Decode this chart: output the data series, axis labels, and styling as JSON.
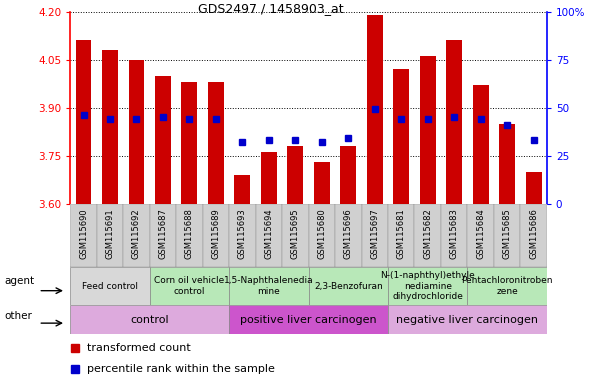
{
  "title": "GDS2497 / 1458903_at",
  "samples": [
    "GSM115690",
    "GSM115691",
    "GSM115692",
    "GSM115687",
    "GSM115688",
    "GSM115689",
    "GSM115693",
    "GSM115694",
    "GSM115695",
    "GSM115680",
    "GSM115696",
    "GSM115697",
    "GSM115681",
    "GSM115682",
    "GSM115683",
    "GSM115684",
    "GSM115685",
    "GSM115686"
  ],
  "bar_values": [
    4.11,
    4.08,
    4.05,
    4.0,
    3.98,
    3.98,
    3.69,
    3.76,
    3.78,
    3.73,
    3.78,
    4.19,
    4.02,
    4.06,
    4.11,
    3.97,
    3.85,
    3.7
  ],
  "percentile_values": [
    46,
    44,
    44,
    45,
    44,
    44,
    32,
    33,
    33,
    32,
    34,
    49,
    44,
    44,
    45,
    44,
    41,
    33
  ],
  "ymin": 3.6,
  "ymax": 4.2,
  "yticks": [
    3.6,
    3.75,
    3.9,
    4.05,
    4.2
  ],
  "y2ticks_vals": [
    0,
    25,
    50,
    75,
    100
  ],
  "y2ticks_labels": [
    "0",
    "25",
    "50",
    "75",
    "100%"
  ],
  "bar_color": "#cc0000",
  "dot_color": "#0000cc",
  "agent_colors": [
    "#d8d8d8",
    "#b8e8b8",
    "#b8e8b8",
    "#b8e8b8",
    "#b8e8b8",
    "#b8e8b8"
  ],
  "agents": [
    {
      "label": "Feed control",
      "start": 0,
      "end": 3
    },
    {
      "label": "Corn oil vehicle\ncontrol",
      "start": 3,
      "end": 6
    },
    {
      "label": "1,5-Naphthalenedia\nmine",
      "start": 6,
      "end": 9
    },
    {
      "label": "2,3-Benzofuran",
      "start": 9,
      "end": 12
    },
    {
      "label": "N-(1-naphthyl)ethyle\nnediamine\ndihydrochloride",
      "start": 12,
      "end": 15
    },
    {
      "label": "Pentachloronitroben\nzene",
      "start": 15,
      "end": 18
    }
  ],
  "other_colors": [
    "#ddaadd",
    "#cc55cc",
    "#ddaadd"
  ],
  "others": [
    {
      "label": "control",
      "start": 0,
      "end": 6
    },
    {
      "label": "positive liver carcinogen",
      "start": 6,
      "end": 12
    },
    {
      "label": "negative liver carcinogen",
      "start": 12,
      "end": 18
    }
  ],
  "sample_box_color": "#d0d0d0",
  "legend_bar_label": "transformed count",
  "legend_dot_label": "percentile rank within the sample",
  "label_fontsize": 7.5,
  "tick_fontsize": 7.5,
  "sample_fontsize": 6.0,
  "agent_fontsize": 6.5,
  "other_fontsize": 8.0
}
